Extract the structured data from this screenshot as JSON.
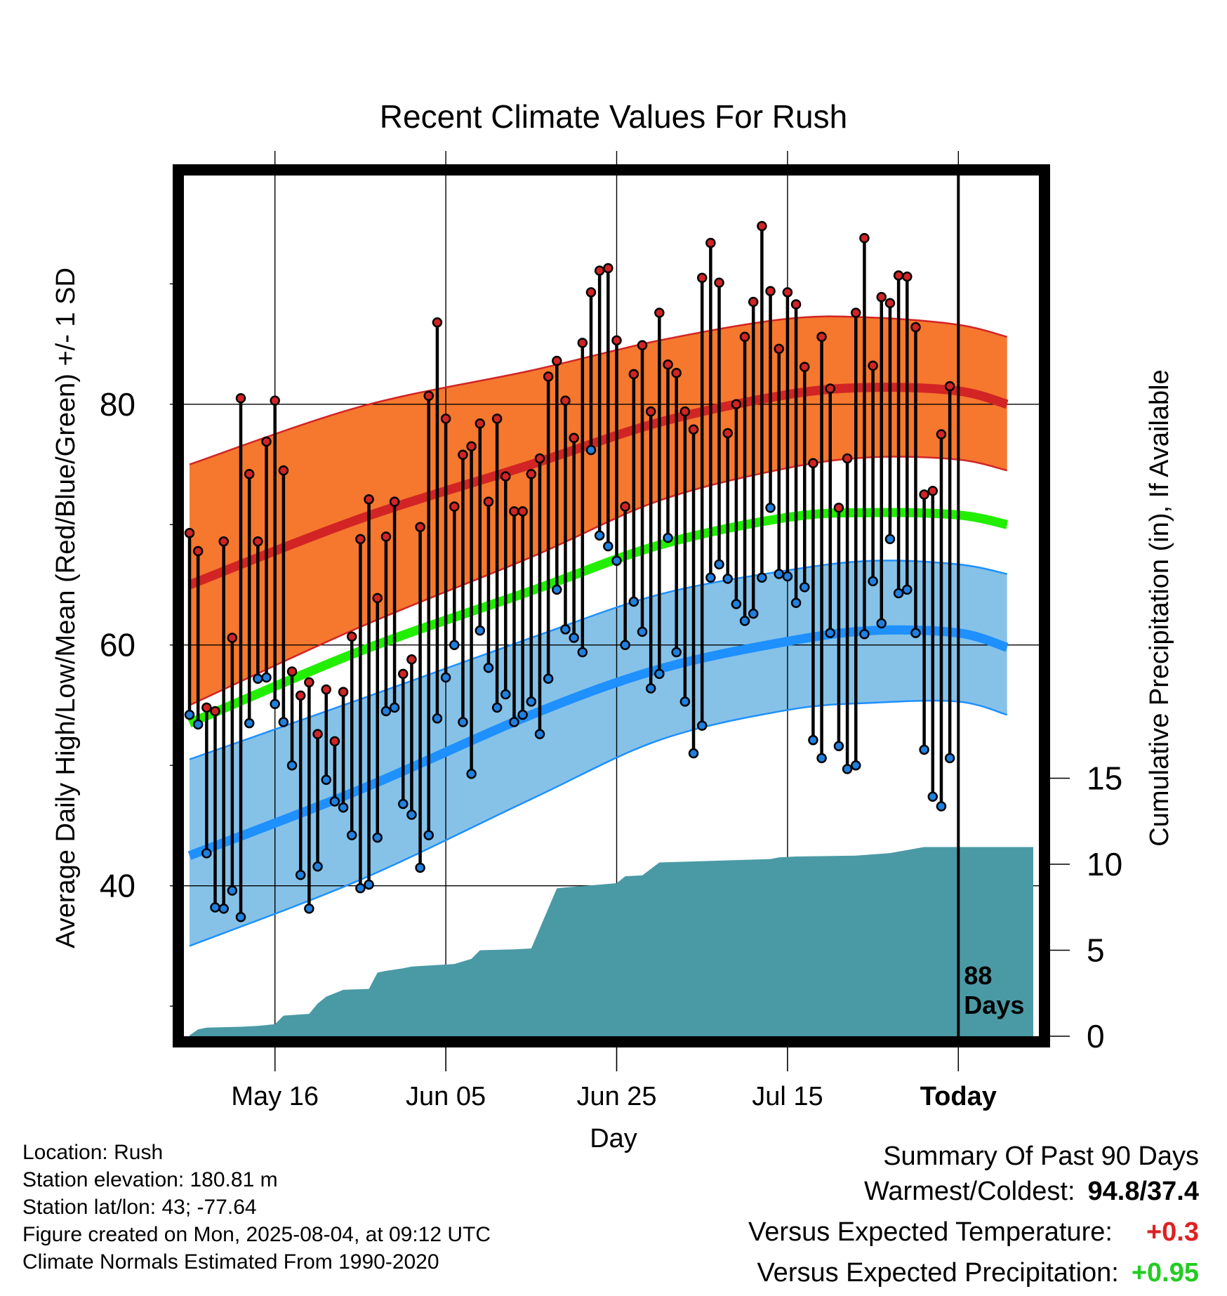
{
  "chart_data": {
    "type": "line",
    "title": "Recent Climate Values For Rush",
    "xlabel": "Day",
    "ylabel_left": "Average Daily High/Low/Mean (Red/Blue/Green) +/- 1 SD",
    "ylabel_right": "Cumulative Precipitation (in), If Available",
    "x_ticks": [
      "May 16",
      "Jun 05",
      "Jun 25",
      "Jul 15",
      "Today"
    ],
    "y_ticks_left": [
      40,
      60,
      80
    ],
    "y_ticks_right": [
      0,
      5,
      10,
      15
    ],
    "ylim_left": [
      27.5,
      99
    ],
    "ylim_right": [
      0,
      40
    ],
    "today_marker_label": "88\nDays",
    "normals": {
      "high_mean": [
        {
          "day": 0,
          "v": 65
        },
        {
          "day": 20,
          "v": 70.5
        },
        {
          "day": 40,
          "v": 75
        },
        {
          "day": 55,
          "v": 78.5
        },
        {
          "day": 70,
          "v": 80.8
        },
        {
          "day": 80,
          "v": 81.4
        },
        {
          "day": 90,
          "v": 81.1
        },
        {
          "day": 100,
          "v": 80
        }
      ],
      "high_upper": [
        {
          "day": 0,
          "v": 75
        },
        {
          "day": 20,
          "v": 79.8
        },
        {
          "day": 40,
          "v": 82.8
        },
        {
          "day": 55,
          "v": 85.3
        },
        {
          "day": 70,
          "v": 87.1
        },
        {
          "day": 80,
          "v": 87.2
        },
        {
          "day": 90,
          "v": 86.6
        },
        {
          "day": 100,
          "v": 85.6
        }
      ],
      "high_lower": [
        {
          "day": 0,
          "v": 55
        },
        {
          "day": 20,
          "v": 61.5
        },
        {
          "day": 40,
          "v": 67.3
        },
        {
          "day": 55,
          "v": 72
        },
        {
          "day": 70,
          "v": 74.7
        },
        {
          "day": 80,
          "v": 75.6
        },
        {
          "day": 90,
          "v": 75.4
        },
        {
          "day": 100,
          "v": 74.5
        }
      ],
      "mean": [
        {
          "day": 0,
          "v": 53.5
        },
        {
          "day": 20,
          "v": 59.5
        },
        {
          "day": 40,
          "v": 64.5
        },
        {
          "day": 55,
          "v": 68.3
        },
        {
          "day": 70,
          "v": 70.6
        },
        {
          "day": 80,
          "v": 71
        },
        {
          "day": 90,
          "v": 70.8
        },
        {
          "day": 100,
          "v": 70
        }
      ],
      "low_mean": [
        {
          "day": 0,
          "v": 42.5
        },
        {
          "day": 20,
          "v": 48
        },
        {
          "day": 40,
          "v": 54.2
        },
        {
          "day": 55,
          "v": 58
        },
        {
          "day": 70,
          "v": 60.3
        },
        {
          "day": 80,
          "v": 61.2
        },
        {
          "day": 90,
          "v": 61
        },
        {
          "day": 100,
          "v": 59.8
        }
      ],
      "low_upper": [
        {
          "day": 0,
          "v": 50.5
        },
        {
          "day": 20,
          "v": 55.5
        },
        {
          "day": 40,
          "v": 60.6
        },
        {
          "day": 55,
          "v": 64.2
        },
        {
          "day": 70,
          "v": 66.2
        },
        {
          "day": 80,
          "v": 67
        },
        {
          "day": 90,
          "v": 66.7
        },
        {
          "day": 100,
          "v": 65.9
        }
      ],
      "low_lower": [
        {
          "day": 0,
          "v": 35
        },
        {
          "day": 20,
          "v": 40.5
        },
        {
          "day": 40,
          "v": 47.2
        },
        {
          "day": 55,
          "v": 52.1
        },
        {
          "day": 70,
          "v": 54.6
        },
        {
          "day": 80,
          "v": 55.2
        },
        {
          "day": 90,
          "v": 55.3
        },
        {
          "day": 100,
          "v": 54.2
        }
      ]
    },
    "daily": [
      {
        "day": 0,
        "high": 69.3,
        "low": 54.2
      },
      {
        "day": 1,
        "high": 67.8,
        "low": 53.4
      },
      {
        "day": 2,
        "high": 54.8,
        "low": 42.7
      },
      {
        "day": 3,
        "high": 54.5,
        "low": 38.2
      },
      {
        "day": 4,
        "high": 68.6,
        "low": 38.1
      },
      {
        "day": 5,
        "high": 60.6,
        "low": 39.6
      },
      {
        "day": 6,
        "high": 80.5,
        "low": 37.4
      },
      {
        "day": 7,
        "high": 74.2,
        "low": 53.5
      },
      {
        "day": 8,
        "high": 68.6,
        "low": 57.2
      },
      {
        "day": 9,
        "high": 76.9,
        "low": 57.3
      },
      {
        "day": 10,
        "high": 80.3,
        "low": 55.1
      },
      {
        "day": 11,
        "high": 74.5,
        "low": 53.6
      },
      {
        "day": 12,
        "high": 57.8,
        "low": 50
      },
      {
        "day": 13,
        "high": 55.8,
        "low": 40.9
      },
      {
        "day": 14,
        "high": 56.9,
        "low": 38.1
      },
      {
        "day": 15,
        "high": 52.6,
        "low": 41.6
      },
      {
        "day": 16,
        "high": 56.3,
        "low": 48.8
      },
      {
        "day": 17,
        "high": 52,
        "low": 47
      },
      {
        "day": 18,
        "high": 56.1,
        "low": 46.5
      },
      {
        "day": 19,
        "high": 60.7,
        "low": 44.2
      },
      {
        "day": 20,
        "high": 68.8,
        "low": 39.8
      },
      {
        "day": 21,
        "high": 72.1,
        "low": 40.1
      },
      {
        "day": 22,
        "high": 63.9,
        "low": 44
      },
      {
        "day": 23,
        "high": 69,
        "low": 54.5
      },
      {
        "day": 24,
        "high": 71.9,
        "low": 54.8
      },
      {
        "day": 25,
        "high": 57.6,
        "low": 46.8
      },
      {
        "day": 26,
        "high": 58.8,
        "low": 45.9
      },
      {
        "day": 27,
        "high": 69.8,
        "low": 41.5
      },
      {
        "day": 28,
        "high": 80.7,
        "low": 44.2
      },
      {
        "day": 29,
        "high": 86.8,
        "low": 53.9
      },
      {
        "day": 30,
        "high": 78.8,
        "low": 57.3
      },
      {
        "day": 31,
        "high": 71.5,
        "low": 60
      },
      {
        "day": 32,
        "high": 75.8,
        "low": 53.6
      },
      {
        "day": 33,
        "high": 76.5,
        "low": 49.3
      },
      {
        "day": 34,
        "high": 78.4,
        "low": 61.2
      },
      {
        "day": 35,
        "high": 71.9,
        "low": 58.1
      },
      {
        "day": 36,
        "high": 78.8,
        "low": 54.8
      },
      {
        "day": 37,
        "high": 74,
        "low": 55.9
      },
      {
        "day": 38,
        "high": 71.1,
        "low": 53.6
      },
      {
        "day": 39,
        "high": 71.1,
        "low": 54.2
      },
      {
        "day": 40,
        "high": 74.2,
        "low": 55.3
      },
      {
        "day": 41,
        "high": 75.5,
        "low": 52.6
      },
      {
        "day": 42,
        "high": 82.3,
        "low": 57.2
      },
      {
        "day": 43,
        "high": 83.6,
        "low": 64.6
      },
      {
        "day": 44,
        "high": 80.3,
        "low": 61.3
      },
      {
        "day": 45,
        "high": 77.2,
        "low": 60.6
      },
      {
        "day": 46,
        "high": 85.1,
        "low": 59.4
      },
      {
        "day": 47,
        "high": 89.3,
        "low": 76.2
      },
      {
        "day": 48,
        "high": 91.1,
        "low": 69.1
      },
      {
        "day": 49,
        "high": 91.3,
        "low": 68.2
      },
      {
        "day": 50,
        "high": 85.3,
        "low": 67
      },
      {
        "day": 51,
        "high": 71.5,
        "low": 60
      },
      {
        "day": 52,
        "high": 82.5,
        "low": 63.6
      },
      {
        "day": 53,
        "high": 84.9,
        "low": 61.1
      },
      {
        "day": 54,
        "high": 79.4,
        "low": 56.4
      },
      {
        "day": 55,
        "high": 87.6,
        "low": 57.6
      },
      {
        "day": 56,
        "high": 83.3,
        "low": 68.9
      },
      {
        "day": 57,
        "high": 82.6,
        "low": 59.4
      },
      {
        "day": 58,
        "high": 79.4,
        "low": 55.3
      },
      {
        "day": 59,
        "high": 77.9,
        "low": 51
      },
      {
        "day": 60,
        "high": 90.5,
        "low": 53.3
      },
      {
        "day": 61,
        "high": 93.4,
        "low": 65.6
      },
      {
        "day": 62,
        "high": 90.1,
        "low": 66.7
      },
      {
        "day": 63,
        "high": 77.6,
        "low": 65.5
      },
      {
        "day": 64,
        "high": 80,
        "low": 63.4
      },
      {
        "day": 65,
        "high": 85.6,
        "low": 62
      },
      {
        "day": 66,
        "high": 88.5,
        "low": 62.6
      },
      {
        "day": 67,
        "high": 94.8,
        "low": 65.6
      },
      {
        "day": 68,
        "high": 89.4,
        "low": 71.4
      },
      {
        "day": 69,
        "high": 84.6,
        "low": 65.9
      },
      {
        "day": 70,
        "high": 89.3,
        "low": 65.7
      },
      {
        "day": 71,
        "high": 88.3,
        "low": 63.5
      },
      {
        "day": 72,
        "high": 83.1,
        "low": 64.8
      },
      {
        "day": 73,
        "high": 75.1,
        "low": 52.1
      },
      {
        "day": 74,
        "high": 85.6,
        "low": 50.6
      },
      {
        "day": 75,
        "high": 81.3,
        "low": 61
      },
      {
        "day": 76,
        "high": 71.4,
        "low": 51.6
      },
      {
        "day": 77,
        "high": 75.5,
        "low": 49.7
      },
      {
        "day": 78,
        "high": 87.6,
        "low": 50
      },
      {
        "day": 79,
        "high": 93.8,
        "low": 60.9
      },
      {
        "day": 80,
        "high": 83.2,
        "low": 65.3
      },
      {
        "day": 81,
        "high": 88.9,
        "low": 61.8
      },
      {
        "day": 82,
        "high": 88.4,
        "low": 68.8
      },
      {
        "day": 83,
        "high": 90.7,
        "low": 64.3
      },
      {
        "day": 84,
        "high": 90.6,
        "low": 64.6
      },
      {
        "day": 85,
        "high": 86.4,
        "low": 61
      },
      {
        "day": 86,
        "high": 72.5,
        "low": 51.3
      },
      {
        "day": 87,
        "high": 72.8,
        "low": 47.4
      },
      {
        "day": 88,
        "high": 77.5,
        "low": 46.6
      },
      {
        "day": 89,
        "high": 81.5,
        "low": 50.6
      }
    ],
    "cumulative_precip": [
      {
        "day": 0,
        "v": 0.05
      },
      {
        "day": 1,
        "v": 0.4
      },
      {
        "day": 2,
        "v": 0.5
      },
      {
        "day": 6,
        "v": 0.55
      },
      {
        "day": 8,
        "v": 0.6
      },
      {
        "day": 10,
        "v": 0.7
      },
      {
        "day": 11,
        "v": 1.2
      },
      {
        "day": 14,
        "v": 1.3
      },
      {
        "day": 15,
        "v": 1.9
      },
      {
        "day": 16,
        "v": 2.3
      },
      {
        "day": 17,
        "v": 2.5
      },
      {
        "day": 18,
        "v": 2.7
      },
      {
        "day": 21,
        "v": 2.75
      },
      {
        "day": 22,
        "v": 3.7
      },
      {
        "day": 23,
        "v": 3.8
      },
      {
        "day": 25,
        "v": 3.95
      },
      {
        "day": 26,
        "v": 4.05
      },
      {
        "day": 31,
        "v": 4.2
      },
      {
        "day": 33,
        "v": 4.5
      },
      {
        "day": 34,
        "v": 5
      },
      {
        "day": 38,
        "v": 5.05
      },
      {
        "day": 40,
        "v": 5.1
      },
      {
        "day": 43,
        "v": 8.6
      },
      {
        "day": 44,
        "v": 8.65
      },
      {
        "day": 50,
        "v": 8.9
      },
      {
        "day": 51,
        "v": 9.3
      },
      {
        "day": 53,
        "v": 9.35
      },
      {
        "day": 55,
        "v": 10.1
      },
      {
        "day": 68,
        "v": 10.3
      },
      {
        "day": 69,
        "v": 10.4
      },
      {
        "day": 71,
        "v": 10.45
      },
      {
        "day": 78,
        "v": 10.5
      },
      {
        "day": 82,
        "v": 10.65
      },
      {
        "day": 86,
        "v": 11
      },
      {
        "day": 100,
        "v": 11
      }
    ]
  },
  "station_info": {
    "location": "Location: Rush",
    "elevation": "Station elevation: 180.81 m",
    "latlon": "Station lat/lon: 43; -77.64",
    "created": "Figure created on Mon, 2025-08-04, at 09:12 UTC",
    "normals": "Climate Normals Estimated From 1990-2020"
  },
  "summary": {
    "title": "Summary Of Past 90 Days",
    "warm_cold_label": "Warmest/Coldest:",
    "warm_cold_value": "94.8/37.4",
    "temp_label": "Versus Expected Temperature:",
    "temp_value": "+0.3",
    "precip_label": "Versus Expected Precipitation:",
    "precip_value": "+0.95"
  },
  "colors": {
    "high_band": "#f5782e",
    "high_line": "#d22424",
    "mean_line": "#22ee00",
    "low_band": "#86c2e8",
    "low_line": "#1e90ff",
    "precip": "#4a9aa5",
    "high_dot": "#d22424",
    "low_dot": "#2080e0"
  }
}
